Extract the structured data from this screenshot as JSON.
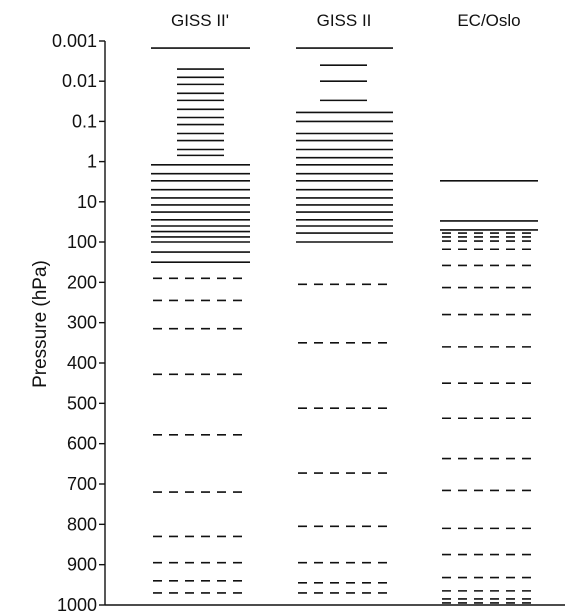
{
  "chart_data": {
    "type": "vertical-levels",
    "ylabel": "Pressure (hPa)",
    "y_tick_labels": [
      {
        "value": 0.001,
        "label": "0.001"
      },
      {
        "value": 0.01,
        "label": "0.01"
      },
      {
        "value": 0.1,
        "label": "0.1"
      },
      {
        "value": 1,
        "label": "1"
      },
      {
        "value": 10,
        "label": "10"
      },
      {
        "value": 100,
        "label": "100"
      },
      {
        "value": 200,
        "label": "200"
      },
      {
        "value": 300,
        "label": "300"
      },
      {
        "value": 400,
        "label": "400"
      },
      {
        "value": 500,
        "label": "500"
      },
      {
        "value": 600,
        "label": "600"
      },
      {
        "value": 700,
        "label": "700"
      },
      {
        "value": 800,
        "label": "800"
      },
      {
        "value": 900,
        "label": "900"
      },
      {
        "value": 1000,
        "label": "1000"
      }
    ],
    "y_scale": "log above 100 hPa, linear from 100 to 1000 hPa",
    "ylim": [
      0.001,
      1000
    ],
    "columns": [
      {
        "name": "GISS II'",
        "solid_levels_hPa": [
          0.0015,
          0.005,
          0.008,
          0.012,
          0.02,
          0.03,
          0.05,
          0.08,
          0.12,
          0.2,
          0.3,
          0.5,
          0.7,
          1.2,
          2,
          3,
          5,
          8,
          12,
          18,
          28,
          40,
          55,
          75,
          100,
          125,
          150
        ],
        "dashed_levels_hPa": [
          190,
          245,
          315,
          428,
          578,
          720,
          830,
          895,
          940,
          970
        ]
      },
      {
        "name": "GISS II",
        "solid_levels_hPa": [
          0.0015,
          0.004,
          0.01,
          0.03,
          0.06,
          0.1,
          0.2,
          0.3,
          0.5,
          0.8,
          1.2,
          2,
          3,
          5,
          8,
          12,
          18,
          28,
          40,
          60,
          100
        ],
        "dashed_levels_hPa": [
          205,
          350,
          512,
          673,
          805,
          895,
          945,
          970
        ]
      },
      {
        "name": "EC/Oslo",
        "solid_levels_hPa": [
          3,
          30,
          50
        ],
        "dashed_levels_hPa": [
          60,
          75,
          95,
          118,
          158,
          213,
          280,
          360,
          450,
          537,
          637,
          716,
          810,
          875,
          932,
          965,
          985,
          995
        ]
      }
    ]
  }
}
